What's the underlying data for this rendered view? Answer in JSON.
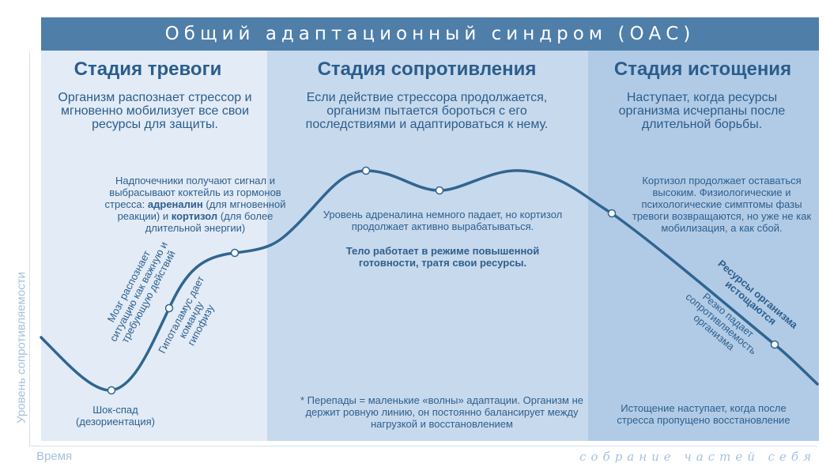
{
  "title": "Общий адаптационный синдром (ОАС)",
  "stages": [
    {
      "title": "Стадия тревоги",
      "description": "Организм распознает стрессор и мгновенно мобилизует все свои ресурсы для защиты."
    },
    {
      "title": "Стадия сопротивления",
      "description": "Если действие стрессора продолжается, организм пытается бороться с его последствиями и адаптироваться к нему."
    },
    {
      "title": "Стадия истощения",
      "description": "Наступает, когда ресурсы организма исчерпаны после длительной борьбы."
    }
  ],
  "notes": {
    "adrenal_1": "Надпочечники получают сигнал и выбрасывают коктейль из гормонов стресса:",
    "adrenaline": "адреналин",
    "adrenal_2": "(для мгновенной реакции) и",
    "cortisol": "кортизол",
    "adrenal_3": "(для более длительной энергии)",
    "brain": "Мозг распознает ситуацию как важную и требующую действий",
    "hypothalamus": "Гипоталамус дает команду гипофизу",
    "shock": "Шок-спад (дезориентация)",
    "adrenaline_drop": "Уровень адреналина немного падает, но кортизол продолжает активно вырабатываться.",
    "high_readiness": "Тело работает в режиме повышенной готовности, тратя свои ресурсы.",
    "waves": "* Перепады = маленькие «волны» адаптации. Организм не держит ровную линию, он постоянно балансирует между нагрузкой и восстановлением",
    "cortisol_high": "Кортизол продолжает оставаться высоким. Физиологические и психологические симптомы фазы тревоги возвращаются, но уже не как мобилизация, а как сбой.",
    "resources_depleted": "Ресурсы организма истощаются",
    "resistance_drop": "Резко падает сопротивляемость организма",
    "exhaustion": "Истощение наступает, когда после стресса пропущено восстановление"
  },
  "axes": {
    "y_label": "Уровень сопротивляемости",
    "x_label": "Время"
  },
  "watermark": "собрание частей себя",
  "colors": {
    "header": "#4f7ea9",
    "curve": "#2f6591",
    "text": "#2b5d8c",
    "panel_alarm": "#e2ebf6",
    "panel_resistance": "#c7d9ec",
    "panel_exhaustion": "#b1cbe6"
  }
}
